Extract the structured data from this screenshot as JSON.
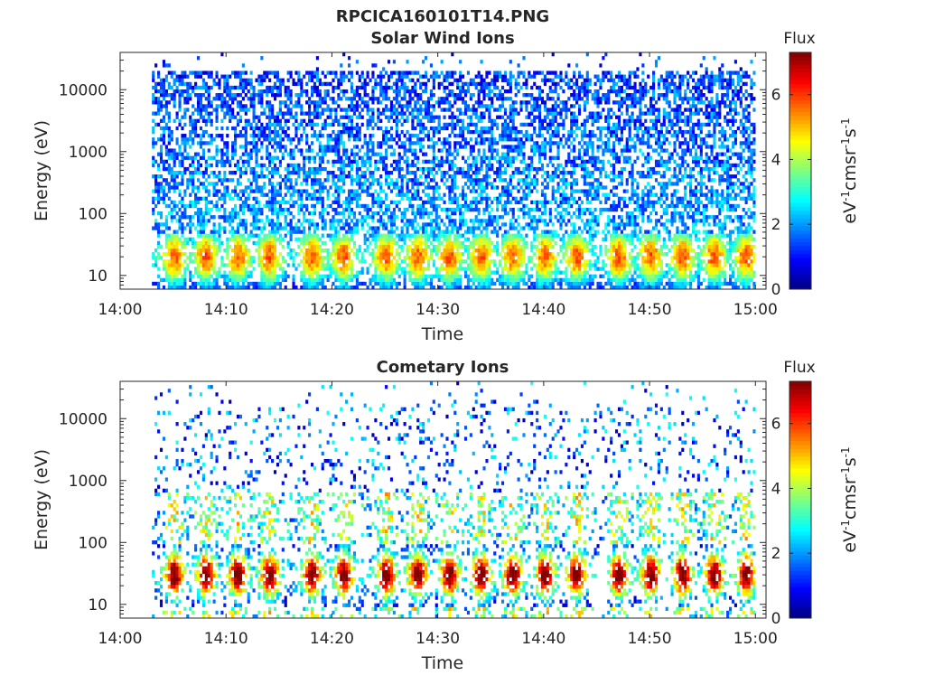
{
  "figure": {
    "title": "RPCICA160101T14.PNG"
  },
  "chart_data": [
    {
      "type": "heatmap",
      "title": "Solar Wind Ions",
      "xlabel": "Time",
      "ylabel": "Energy (eV)",
      "y_scale": "log",
      "xlim": [
        "14:00",
        "15:01"
      ],
      "ylim": [
        6,
        40000
      ],
      "x_ticks": [
        "14:00",
        "14:10",
        "14:20",
        "14:30",
        "14:40",
        "14:50",
        "15:00"
      ],
      "y_ticks": [
        "10",
        "100",
        "1000",
        "10000"
      ],
      "colorbar": {
        "title": "Flux",
        "label": "eV-1cm-2sr-1s-1",
        "ticks": [
          "0",
          "2",
          "4",
          "6"
        ],
        "range": [
          0,
          7.3
        ],
        "colormap": "jet"
      },
      "data_start": "14:03",
      "data_end": "15:00",
      "energy_peak_eV": 20,
      "peak_flux": 5.5,
      "bursts": [
        "14:05",
        "14:08",
        "14:11",
        "14:14",
        "14:18",
        "14:21",
        "14:25",
        "14:28",
        "14:31",
        "14:34",
        "14:37",
        "14:40",
        "14:43",
        "14:47",
        "14:50",
        "14:53",
        "14:56",
        "14:59"
      ]
    },
    {
      "type": "heatmap",
      "title": "Cometary Ions",
      "xlabel": "Time",
      "ylabel": "Energy (eV)",
      "y_scale": "log",
      "xlim": [
        "14:00",
        "15:01"
      ],
      "ylim": [
        6,
        40000
      ],
      "x_ticks": [
        "14:00",
        "14:10",
        "14:20",
        "14:30",
        "14:40",
        "14:50",
        "15:00"
      ],
      "y_ticks": [
        "10",
        "100",
        "1000",
        "10000"
      ],
      "colorbar": {
        "title": "Flux",
        "label": "eV-1cm-2sr-1s-1",
        "ticks": [
          "0",
          "2",
          "4",
          "6"
        ],
        "range": [
          0,
          7.3
        ],
        "colormap": "jet"
      },
      "data_start": "14:03",
      "data_end": "15:00",
      "energy_peak_eV": 30,
      "peak_flux": 7,
      "bursts": [
        "14:05",
        "14:08",
        "14:11",
        "14:14",
        "14:18",
        "14:21",
        "14:25",
        "14:28",
        "14:31",
        "14:34",
        "14:37",
        "14:40",
        "14:43",
        "14:47",
        "14:50",
        "14:53",
        "14:56",
        "14:59"
      ]
    }
  ]
}
